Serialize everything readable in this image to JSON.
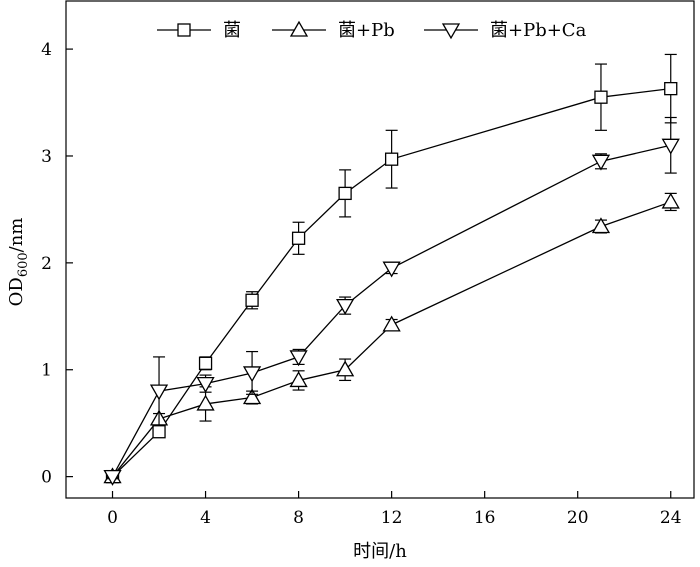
{
  "chart_data": {
    "type": "line",
    "title": "",
    "xlabel": "时间/h",
    "ylabel": {
      "prefix": "OD",
      "subscript": "600",
      "suffix": "/nm"
    },
    "xlim": [
      -2,
      25
    ],
    "ylim": [
      -0.2,
      4.45
    ],
    "x_ticks": [
      0,
      4,
      8,
      12,
      16,
      20,
      24
    ],
    "y_ticks": [
      0,
      1,
      2,
      3,
      4
    ],
    "grid": false,
    "legend_position": "top",
    "series": [
      {
        "name": "菌",
        "marker": "square",
        "x": [
          0,
          2,
          4,
          6,
          8,
          10,
          12,
          21,
          24
        ],
        "y": [
          0.0,
          0.42,
          1.06,
          1.65,
          2.23,
          2.65,
          2.97,
          3.55,
          3.63
        ],
        "err": [
          0.02,
          0.05,
          0.06,
          0.08,
          0.15,
          0.22,
          0.27,
          0.31,
          0.32
        ]
      },
      {
        "name": "菌+Pb",
        "marker": "triangle-up",
        "x": [
          0,
          2,
          4,
          6,
          8,
          10,
          12,
          21,
          24
        ],
        "y": [
          0.0,
          0.54,
          0.68,
          0.74,
          0.9,
          1.0,
          1.42,
          2.34,
          2.57
        ],
        "err": [
          0.02,
          0.05,
          0.16,
          0.06,
          0.09,
          0.1,
          0.05,
          0.06,
          0.08
        ]
      },
      {
        "name": "菌+Pb+Ca",
        "marker": "triangle-down",
        "x": [
          0,
          2,
          4,
          6,
          8,
          10,
          12,
          21,
          24
        ],
        "y": [
          0.0,
          0.8,
          0.87,
          0.97,
          1.12,
          1.6,
          1.95,
          2.95,
          3.1
        ],
        "err": [
          0.02,
          0.32,
          0.08,
          0.2,
          0.07,
          0.08,
          0.05,
          0.07,
          0.26
        ]
      }
    ]
  },
  "colors": {
    "line": "#000000",
    "background": "#ffffff"
  }
}
